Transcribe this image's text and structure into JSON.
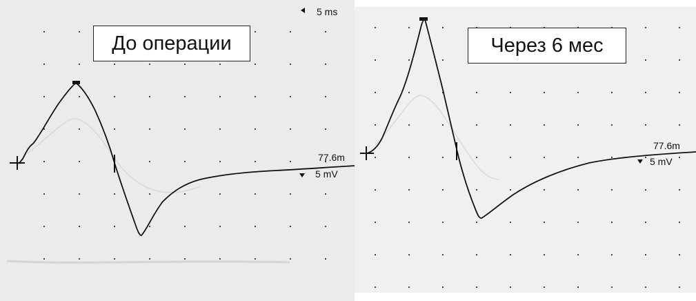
{
  "panels": {
    "before": {
      "caption": "До операции",
      "level_label": "77.6m",
      "amplitude_label": "5 mV",
      "time_label": "5 ms"
    },
    "after": {
      "caption": "Через 6 мес",
      "level_label": "77.6m",
      "amplitude_label": "5 mV"
    }
  },
  "colors": {
    "trace": "#111111",
    "grid_dot": "#333333",
    "marker": "#111111"
  }
}
